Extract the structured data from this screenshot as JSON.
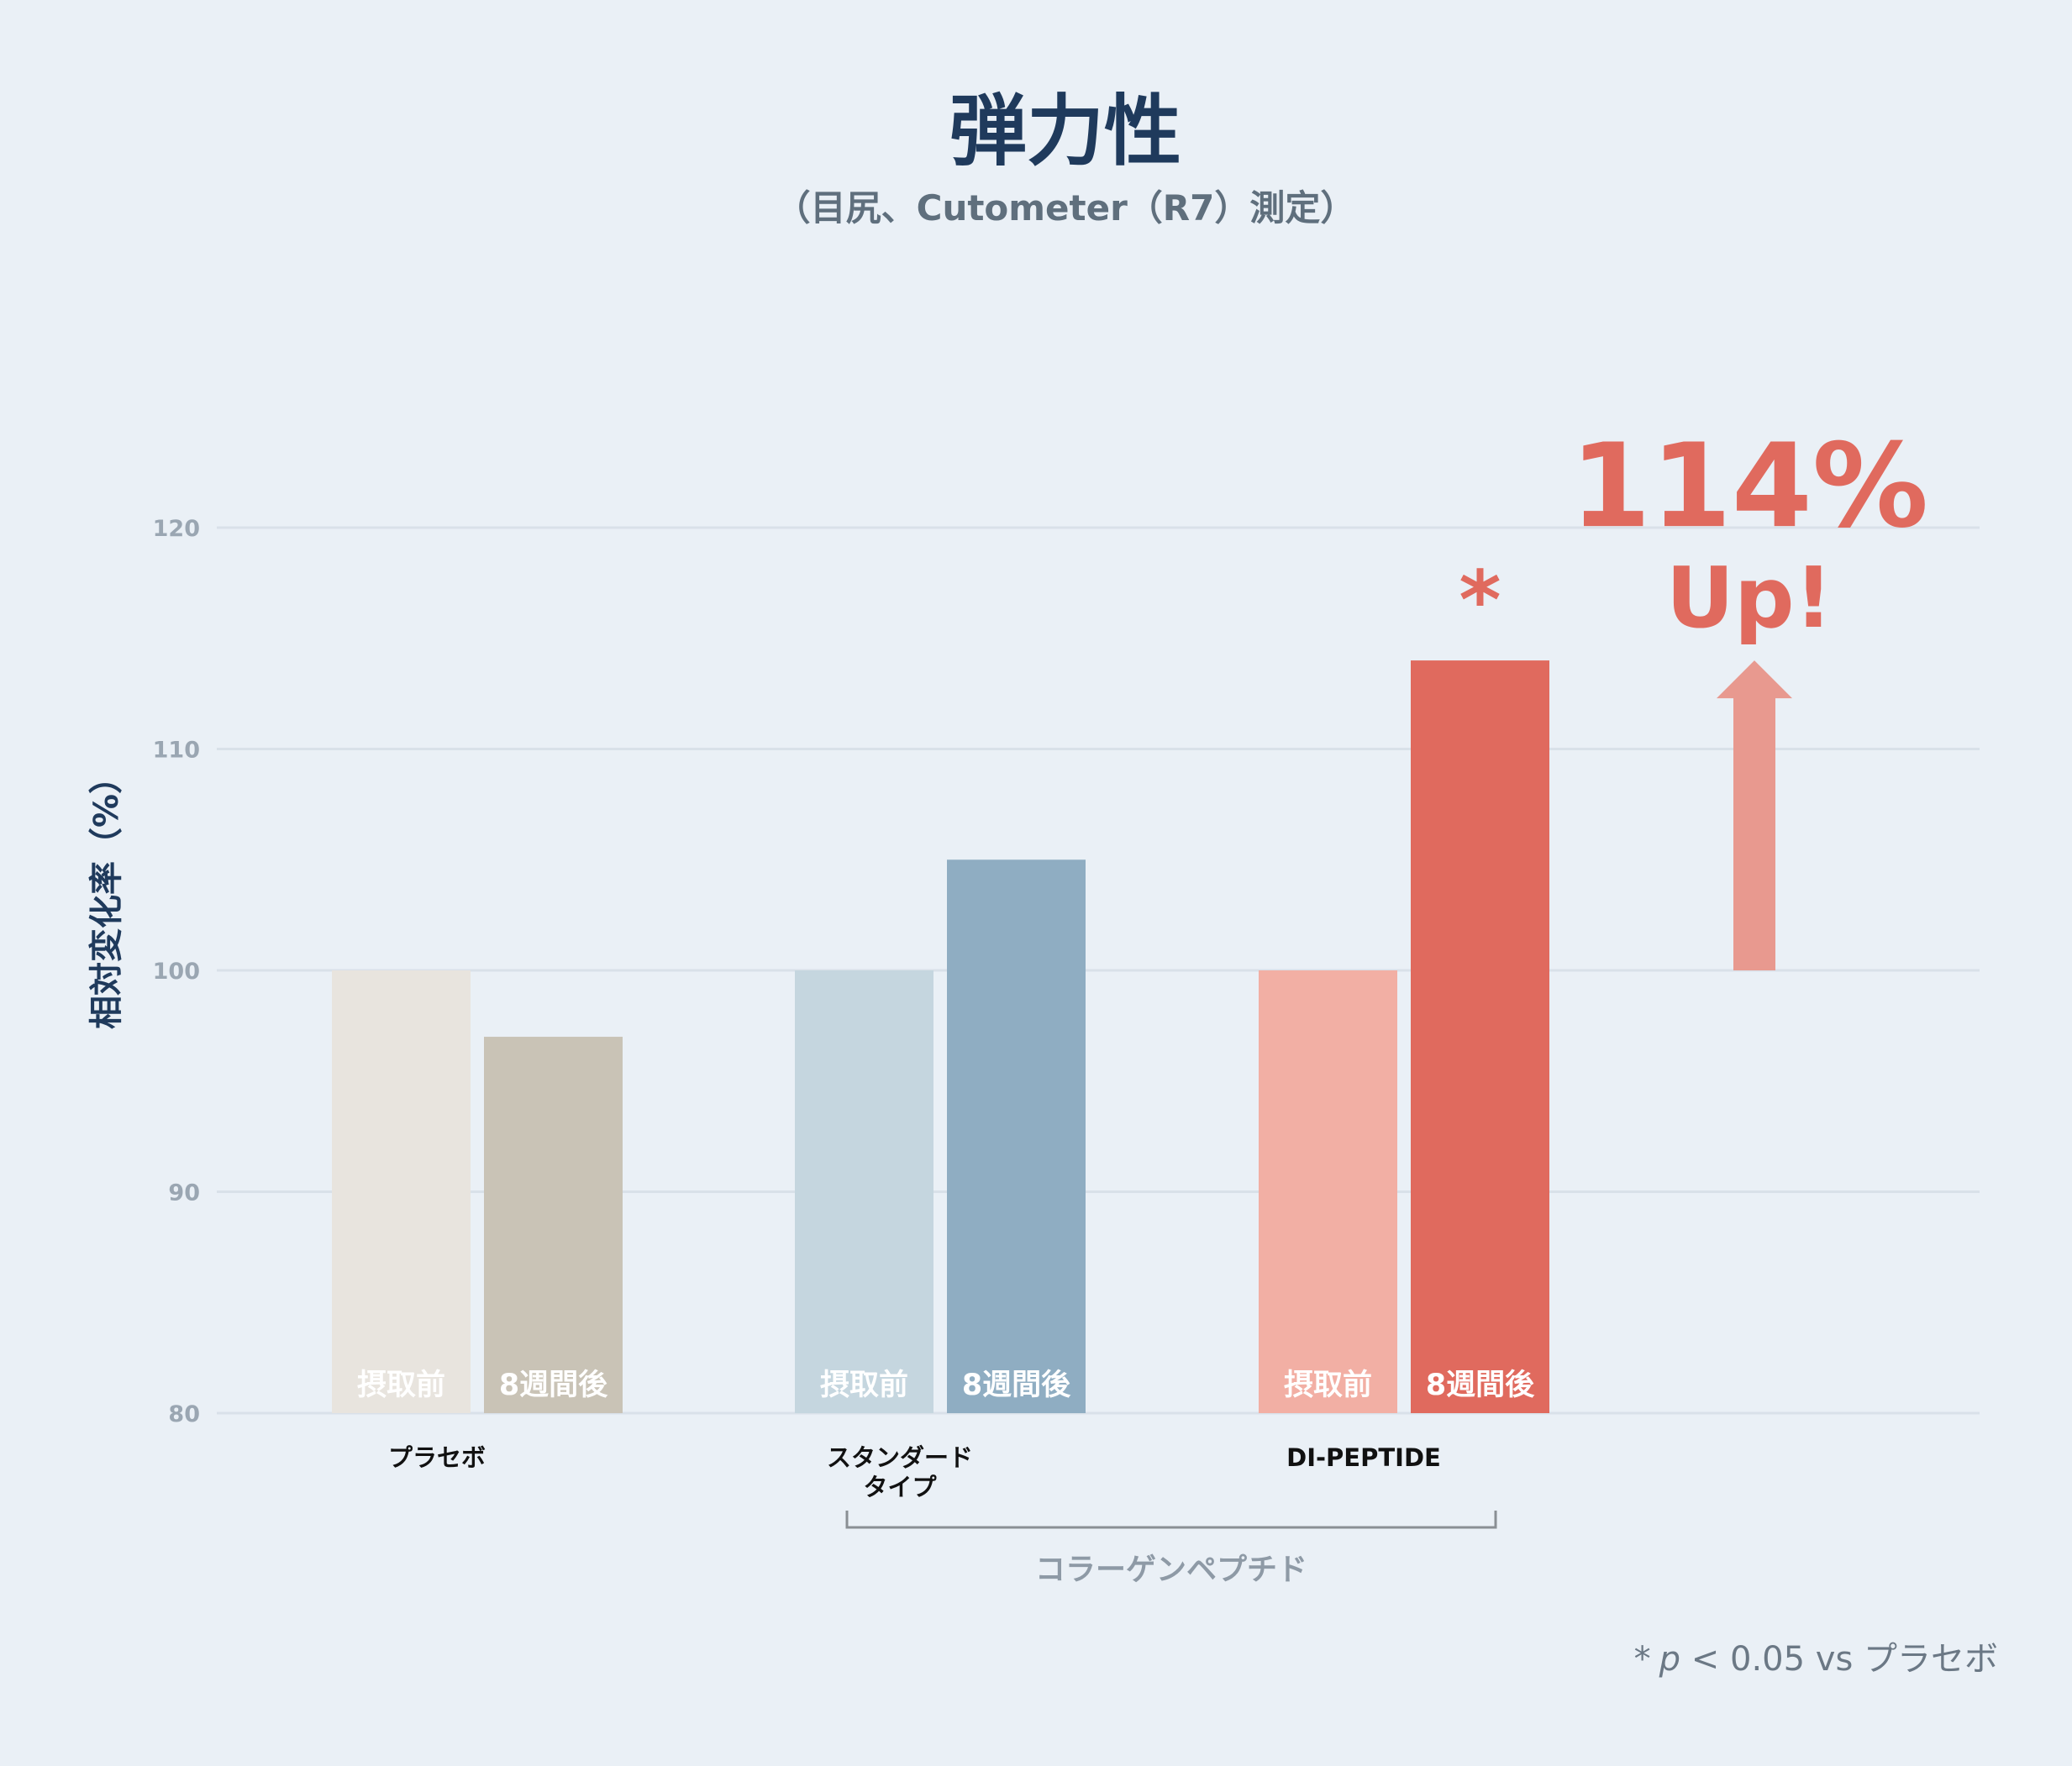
{
  "chart_data": {
    "type": "bar",
    "title": "弾力性",
    "subtitle": "（目尻、Cutometer（R7）測定）",
    "ylabel": "相対変化率（%）",
    "ylim": [
      80,
      120
    ],
    "yticks": [
      80,
      90,
      100,
      110,
      120
    ],
    "grid": true,
    "categories": [
      {
        "label": [
          "プラセボ"
        ]
      },
      {
        "label": [
          "スタンダード",
          "タイプ"
        ]
      },
      {
        "label": [
          "DI-PEPTIDE"
        ]
      }
    ],
    "series": [
      {
        "name": "摂取前",
        "values": [
          100,
          100,
          100
        ]
      },
      {
        "name": "8週間後",
        "values": [
          97,
          105,
          114
        ]
      }
    ],
    "bar_colors": [
      [
        "#e8e4de",
        "#c9c3b6"
      ],
      [
        "#c5d6df",
        "#8fadc2"
      ],
      [
        "#f2afa4",
        "#e06a5e"
      ]
    ],
    "group_bracket": {
      "label": "コラーゲンペプチド",
      "from": 1,
      "to": 2
    },
    "significance": {
      "category": 2,
      "series": 1,
      "mark": "*"
    },
    "callout": {
      "value": "114%",
      "text": "Up!",
      "from": 100,
      "to": 114,
      "color": "#e8998f"
    },
    "footnote": {
      "star": "*",
      "p": "p",
      "rest": " < 0.05 vs プラセボ"
    }
  }
}
